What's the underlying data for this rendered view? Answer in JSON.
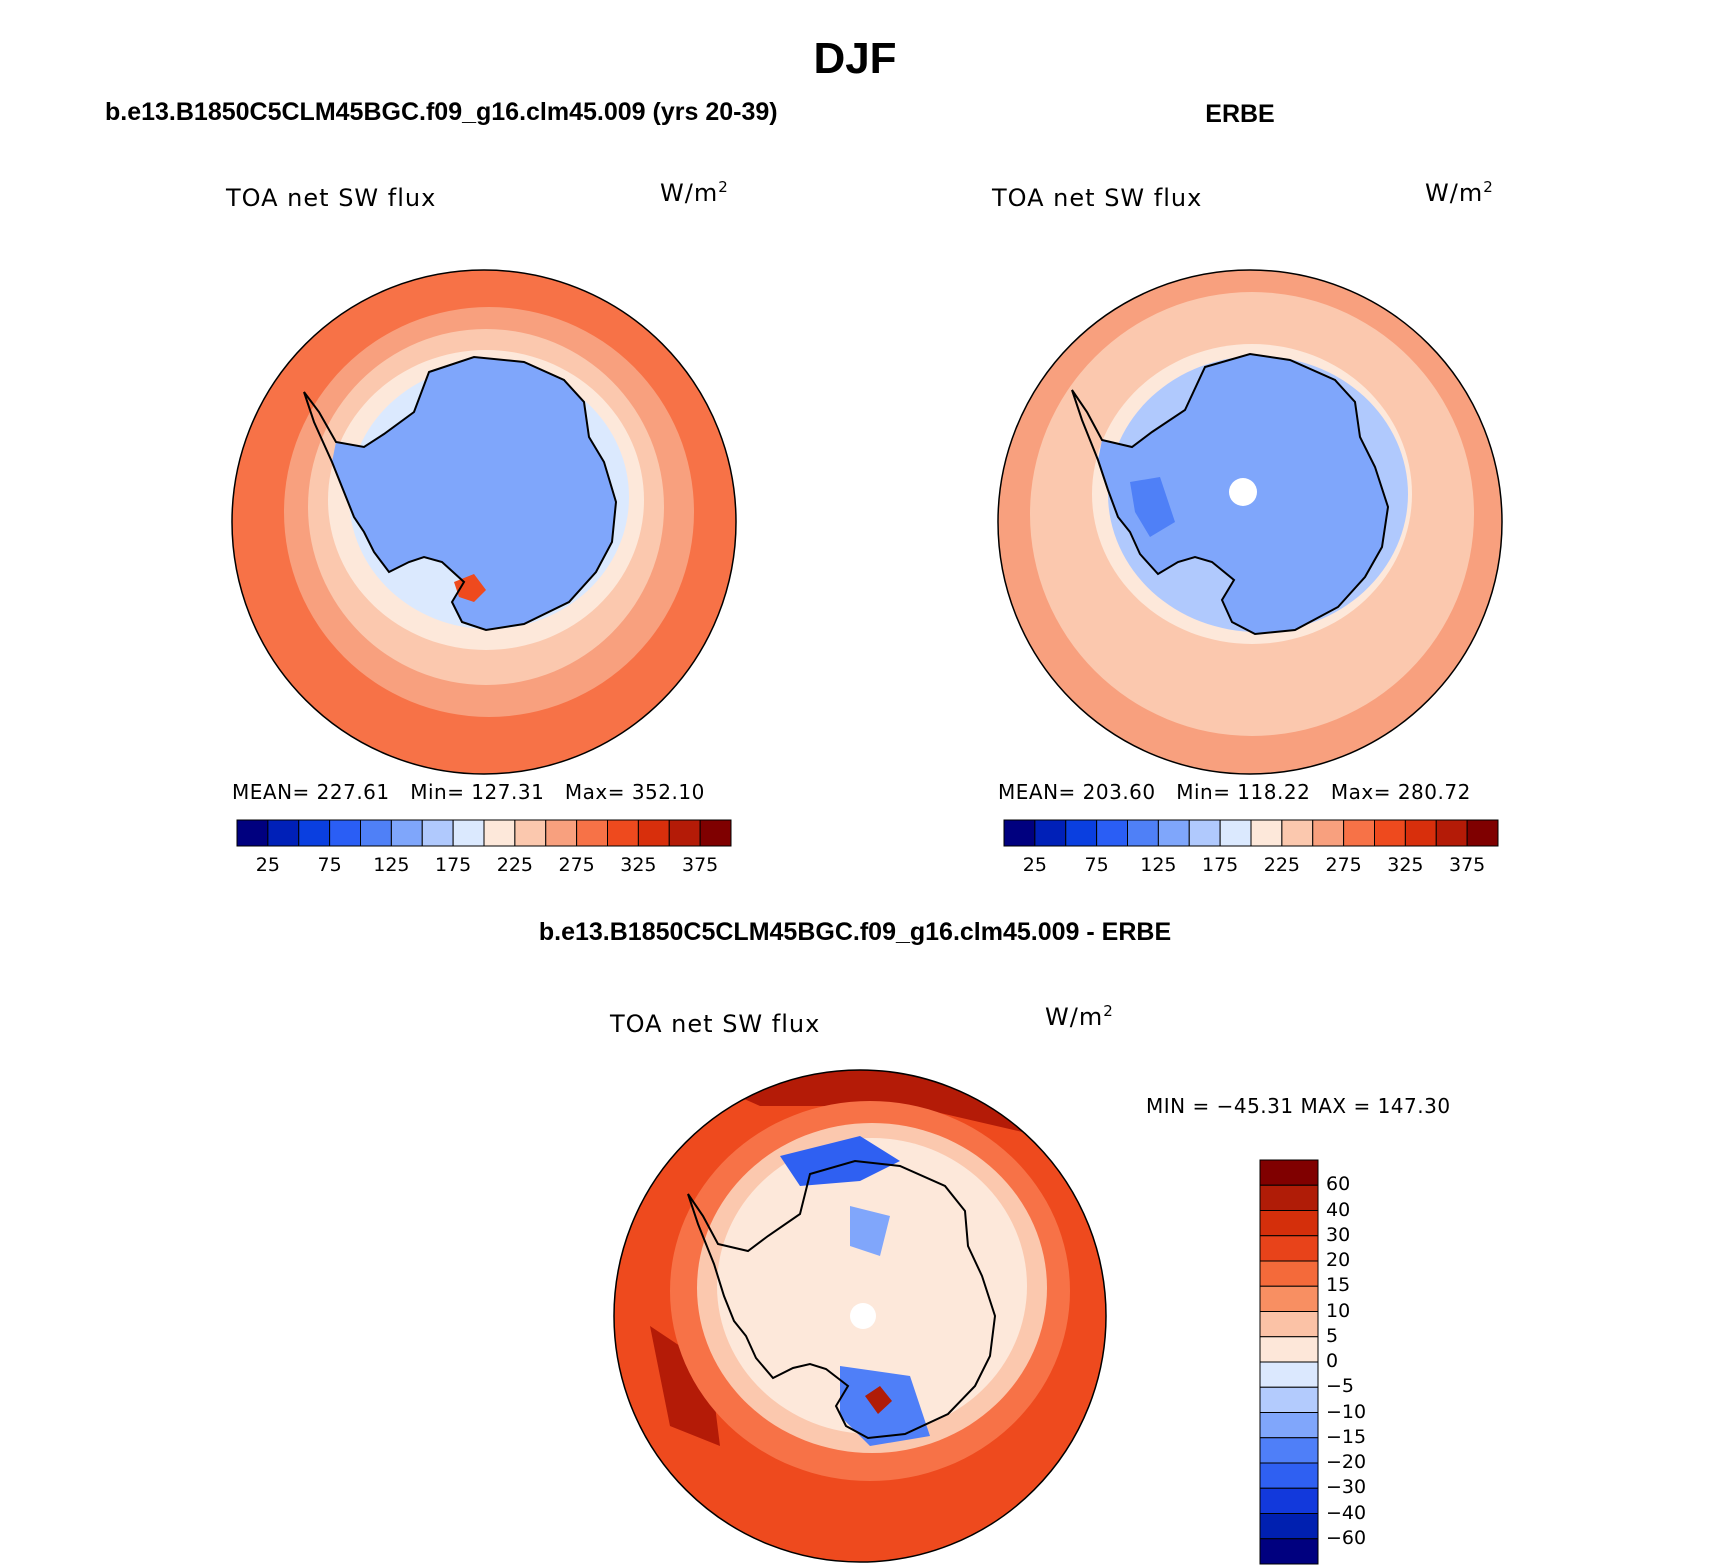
{
  "header": {
    "title": "DJF",
    "panel1_title": "b.e13.B1850C5CLM45BGC.f09_g16.clm45.009 (yrs 20-39)",
    "panel2_title": "ERBE",
    "panel3_title": "b.e13.B1850C5CLM45BGC.f09_g16.clm45.009 - ERBE"
  },
  "panels": [
    {
      "variable": "TOA net SW flux",
      "units": "W/m",
      "units_sup": "2",
      "stats": "MEAN= 227.61   Min= 127.31   Max= 352.10"
    },
    {
      "variable": "TOA net SW flux",
      "units": "W/m",
      "units_sup": "2",
      "stats": "MEAN= 203.60   Min= 118.22   Max= 280.72"
    },
    {
      "variable": "TOA net SW flux",
      "units": "W/m",
      "units_sup": "2",
      "stats": "MIN = −45.31 MAX = 147.30"
    }
  ],
  "colorbar_abs": {
    "labels": [
      "25",
      "75",
      "125",
      "175",
      "225",
      "275",
      "325",
      "375"
    ],
    "colors": [
      "#00007f",
      "#0020b8",
      "#0a3fe0",
      "#2a5ef5",
      "#4f80f7",
      "#7fa6fb",
      "#b0c9fd",
      "#dbe9fe",
      "#fde8da",
      "#fbc8ae",
      "#f8a07e",
      "#f77247",
      "#ee4a1e",
      "#d82f0c",
      "#b41b07",
      "#7f0000"
    ]
  },
  "colorbar_diff": {
    "labels": [
      "60",
      "40",
      "30",
      "20",
      "15",
      "10",
      "5",
      "0",
      "−5",
      "−10",
      "−15",
      "−20",
      "−30",
      "−40",
      "−60"
    ],
    "colors": [
      "#800000",
      "#b01c07",
      "#d42f0b",
      "#e8431a",
      "#f46a3a",
      "#f88f62",
      "#fbc2a6",
      "#fde7d9",
      "#dbe8fe",
      "#b3cbfd",
      "#80a6fb",
      "#4f7ff8",
      "#2f60f2",
      "#1239dc",
      "#0020b0",
      "#00007f"
    ]
  },
  "map_colors": {
    "ocean_model": "#f77247",
    "ocean_model_mid": "#f8a07e",
    "ocean_model_light": "#fbc8ae",
    "ice_model": "#7fa6fb",
    "ocean_obs": "#fbc8ae",
    "ocean_obs_outer": "#f8a07e",
    "ice_obs": "#7fa6fb",
    "diff_outer": "#ee4a1e",
    "diff_dark": "#b41b07",
    "pole_hole": "#ffffff"
  }
}
